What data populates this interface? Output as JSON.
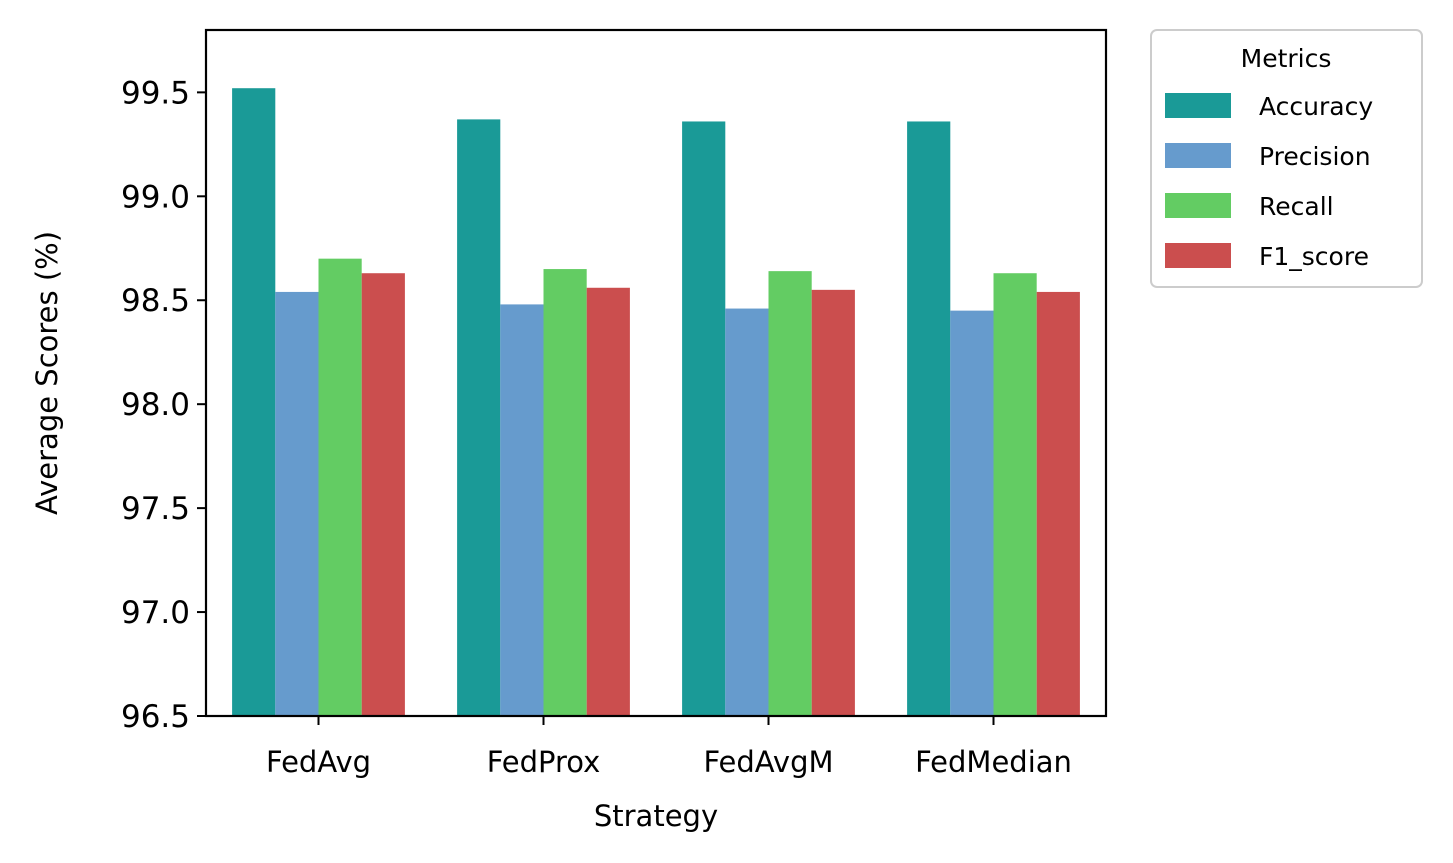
{
  "chart_data": {
    "type": "bar",
    "title": "",
    "xlabel": "Strategy",
    "ylabel": "Average Scores (%)",
    "ylim": [
      96.5,
      99.8
    ],
    "yticks": [
      "96.5",
      "97.0",
      "97.5",
      "98.0",
      "98.5",
      "99.0",
      "99.5"
    ],
    "grid": false,
    "categories": [
      "FedAvg",
      "FedProx",
      "FedAvgM",
      "FedMedian"
    ],
    "legend": {
      "title": "Metrics",
      "placement": "outside-top-right"
    },
    "series": [
      {
        "name": "Accuracy",
        "color": "#1a9a97",
        "values": [
          99.52,
          99.37,
          99.36,
          99.36
        ]
      },
      {
        "name": "Precision",
        "color": "#669bcd",
        "values": [
          98.54,
          98.48,
          98.46,
          98.45
        ]
      },
      {
        "name": "Recall",
        "color": "#63cc63",
        "values": [
          98.7,
          98.65,
          98.64,
          98.63
        ]
      },
      {
        "name": "F1_score",
        "color": "#cb4e4e",
        "values": [
          98.63,
          98.56,
          98.55,
          98.54
        ]
      }
    ]
  }
}
